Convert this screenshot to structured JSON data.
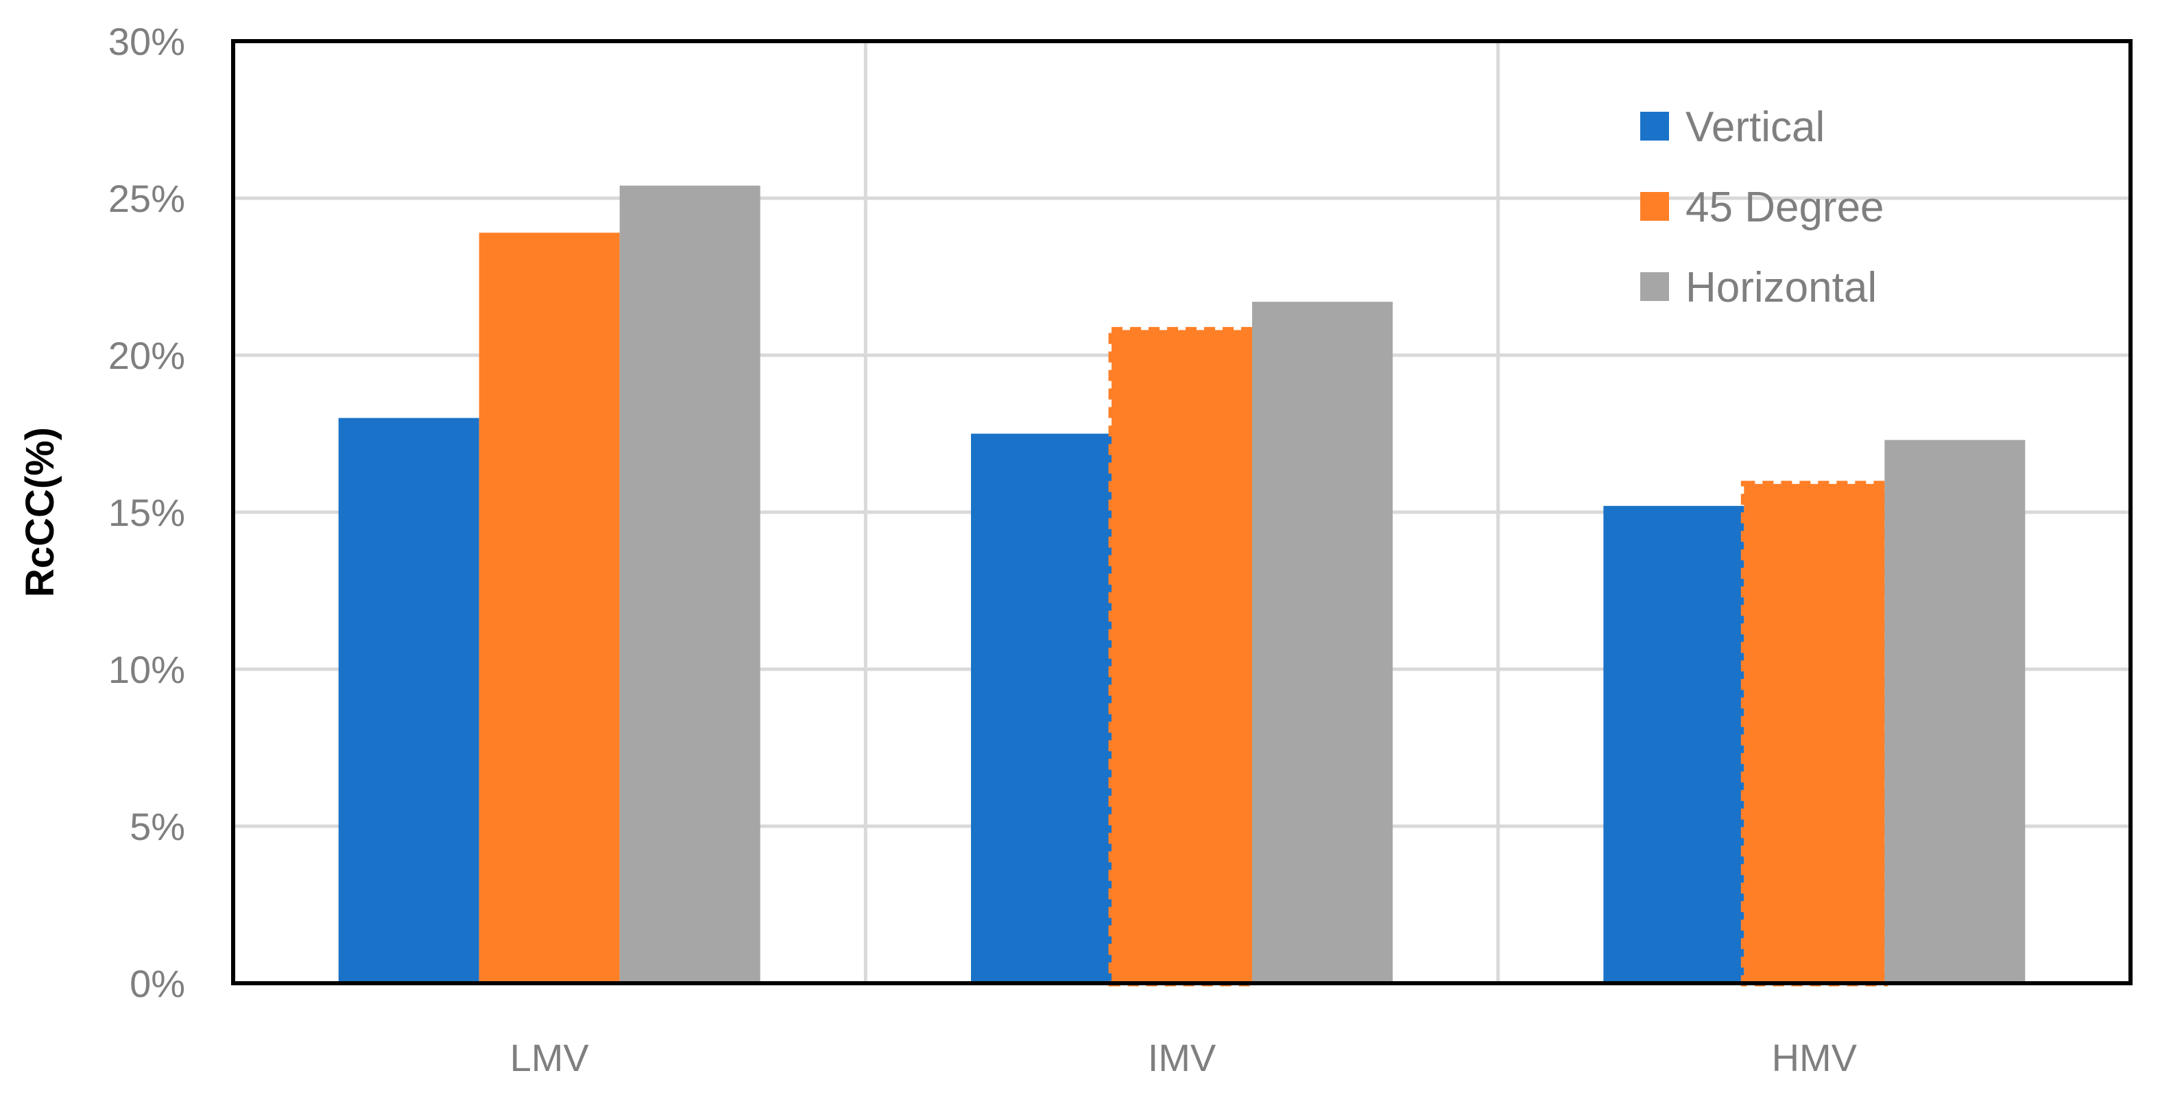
{
  "chart_data": {
    "type": "bar",
    "title": "",
    "xlabel": "",
    "ylabel": "RcCC(%)",
    "categories": [
      "LMV",
      "IMV",
      "HMV"
    ],
    "ylim": [
      0,
      30
    ],
    "y_ticks": [
      0,
      5,
      10,
      15,
      20,
      25,
      30
    ],
    "y_tick_labels": [
      "0%",
      "5%",
      "10%",
      "15%",
      "20%",
      "25%",
      "30%"
    ],
    "y_unit": "%",
    "grid": true,
    "legend_position": "top-right",
    "series": [
      {
        "name": "Vertical",
        "color": "#1a73c8",
        "values": [
          18.0,
          17.5,
          15.2
        ]
      },
      {
        "name": "45 Degree",
        "color": "#ff7f27",
        "values": [
          23.9,
          20.8,
          15.9
        ]
      },
      {
        "name": "Horizontal",
        "color": "#a6a6a6",
        "values": [
          25.4,
          21.7,
          17.3
        ]
      }
    ],
    "highlighted_bars": [
      {
        "series": "45 Degree",
        "category": "IMV",
        "style": "dashed-outline"
      },
      {
        "series": "45 Degree",
        "category": "HMV",
        "style": "dashed-outline"
      }
    ]
  }
}
